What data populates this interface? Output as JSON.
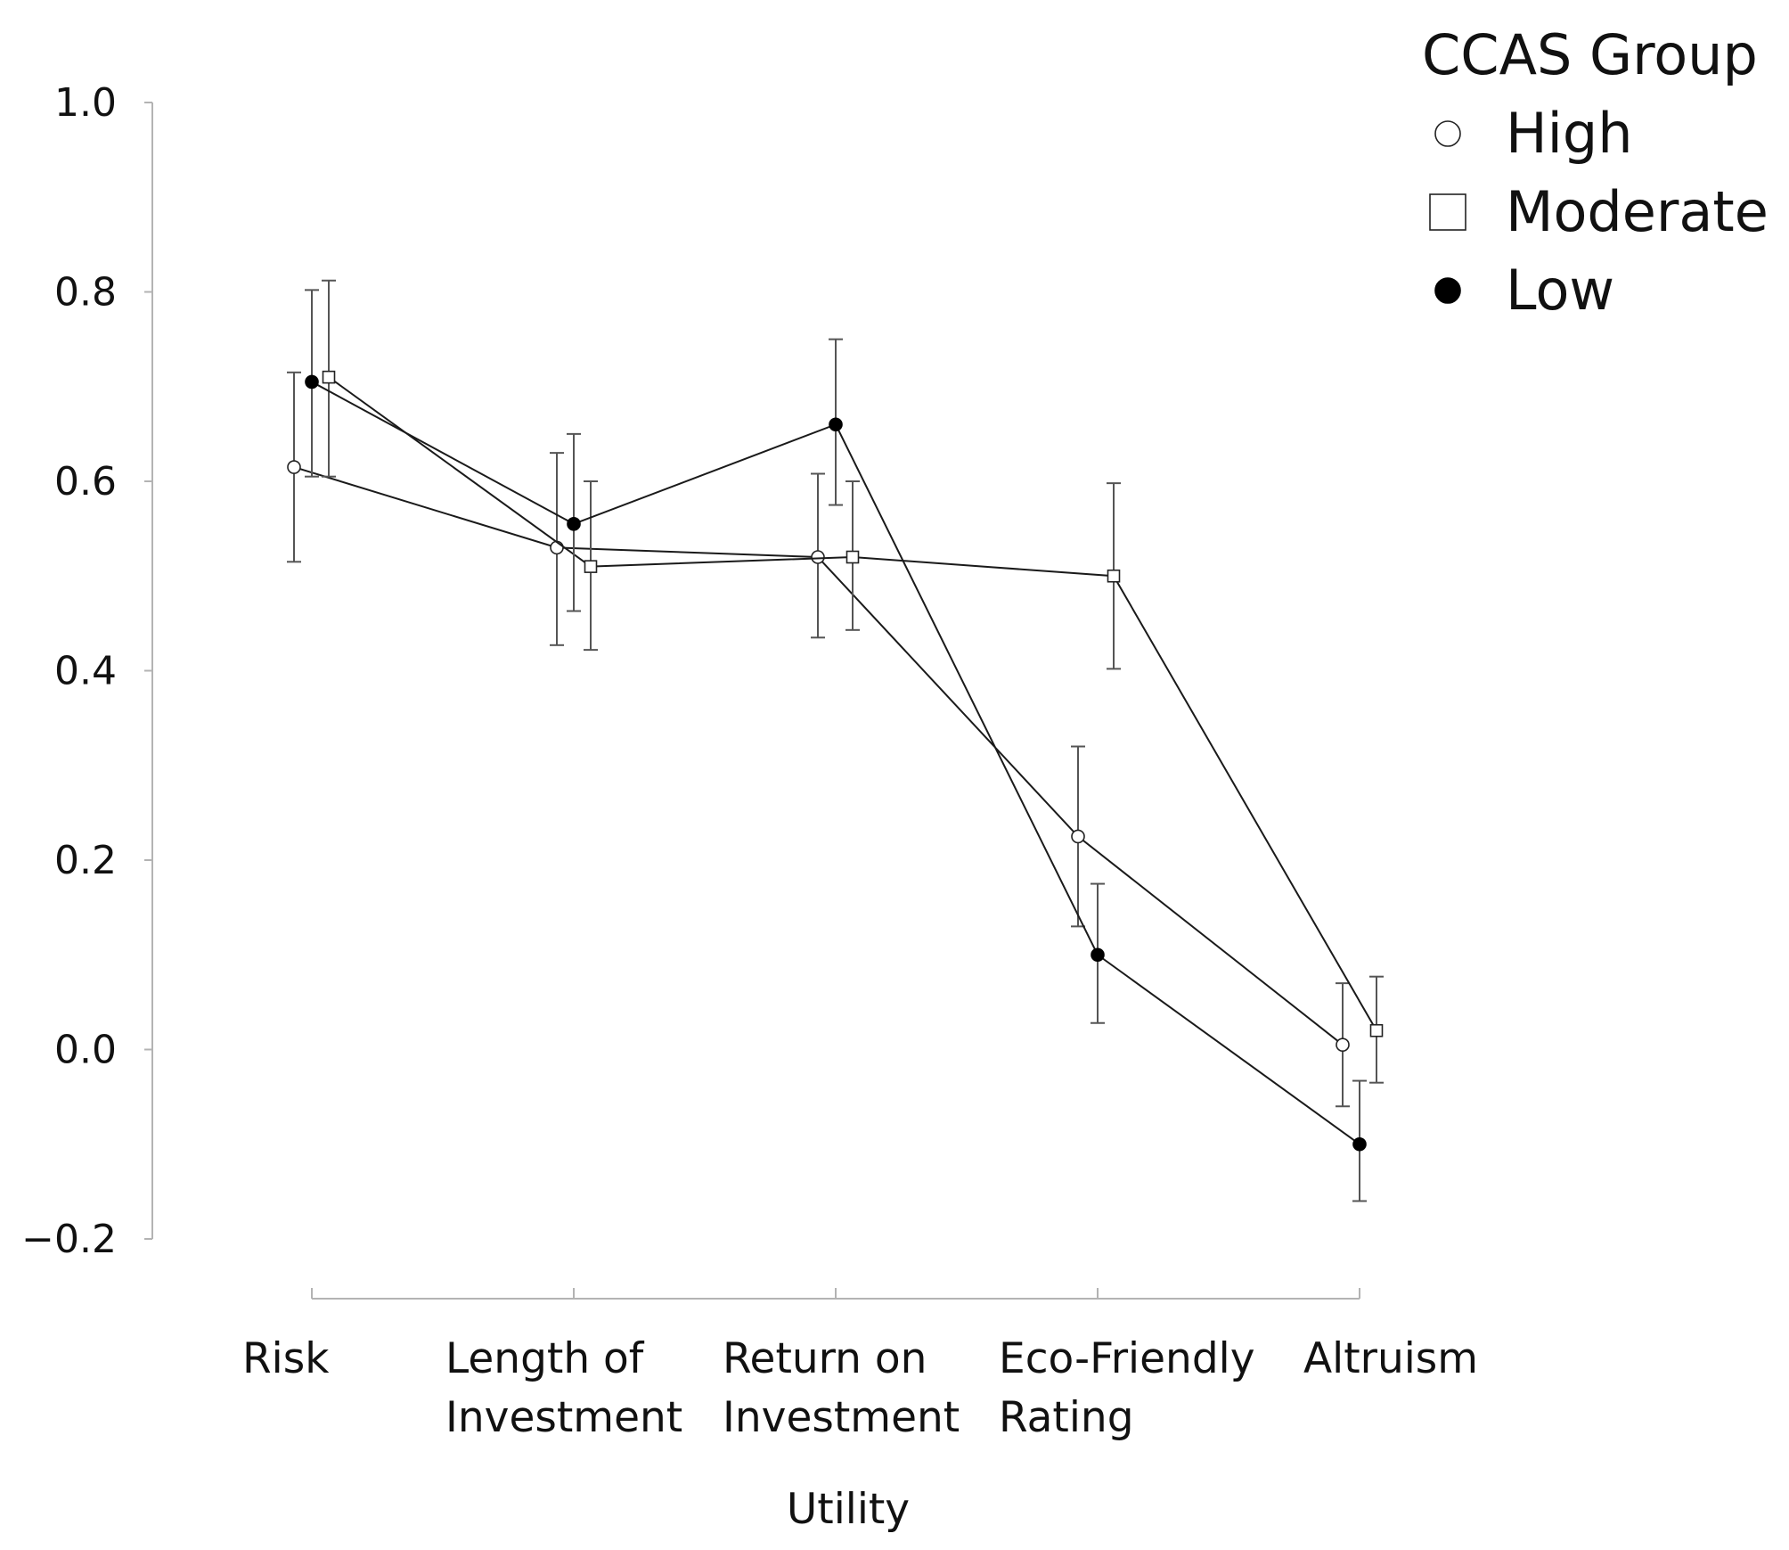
{
  "chart_data": {
    "type": "line",
    "title": "",
    "xlabel": "Utility",
    "ylabel": "",
    "ylim": [
      -0.2,
      1.0
    ],
    "yticks": [
      "-0.2",
      "0.0",
      "0.2",
      "0.4",
      "0.6",
      "0.8",
      "1.0"
    ],
    "ytick_values": [
      -0.2,
      0.0,
      0.2,
      0.4,
      0.6,
      0.8,
      1.0
    ],
    "categories": [
      [
        "Risk"
      ],
      [
        "Length of",
        "Investment"
      ],
      [
        "Return on",
        "Investment"
      ],
      [
        "Eco-Friendly",
        "Rating"
      ],
      [
        "Altruism"
      ]
    ],
    "legend": {
      "title": "CCAS Group",
      "position": "top-right"
    },
    "series": [
      {
        "name": "High",
        "marker": "circle-open",
        "values": [
          0.615,
          0.53,
          0.52,
          0.225,
          0.005
        ],
        "err_low": [
          0.515,
          0.427,
          0.435,
          0.13,
          -0.06
        ],
        "err_high": [
          0.715,
          0.63,
          0.608,
          0.32,
          0.07
        ]
      },
      {
        "name": "Moderate",
        "marker": "square-open",
        "values": [
          0.71,
          0.51,
          0.52,
          0.5,
          0.02
        ],
        "err_low": [
          0.605,
          0.422,
          0.443,
          0.402,
          -0.035
        ],
        "err_high": [
          0.812,
          0.6,
          0.6,
          0.598,
          0.077
        ]
      },
      {
        "name": "Low",
        "marker": "circle-filled",
        "values": [
          0.705,
          0.555,
          0.66,
          0.1,
          -0.1
        ],
        "err_low": [
          0.605,
          0.463,
          0.575,
          0.028,
          -0.16
        ],
        "err_high": [
          0.802,
          0.65,
          0.75,
          0.175,
          -0.033
        ]
      }
    ]
  }
}
